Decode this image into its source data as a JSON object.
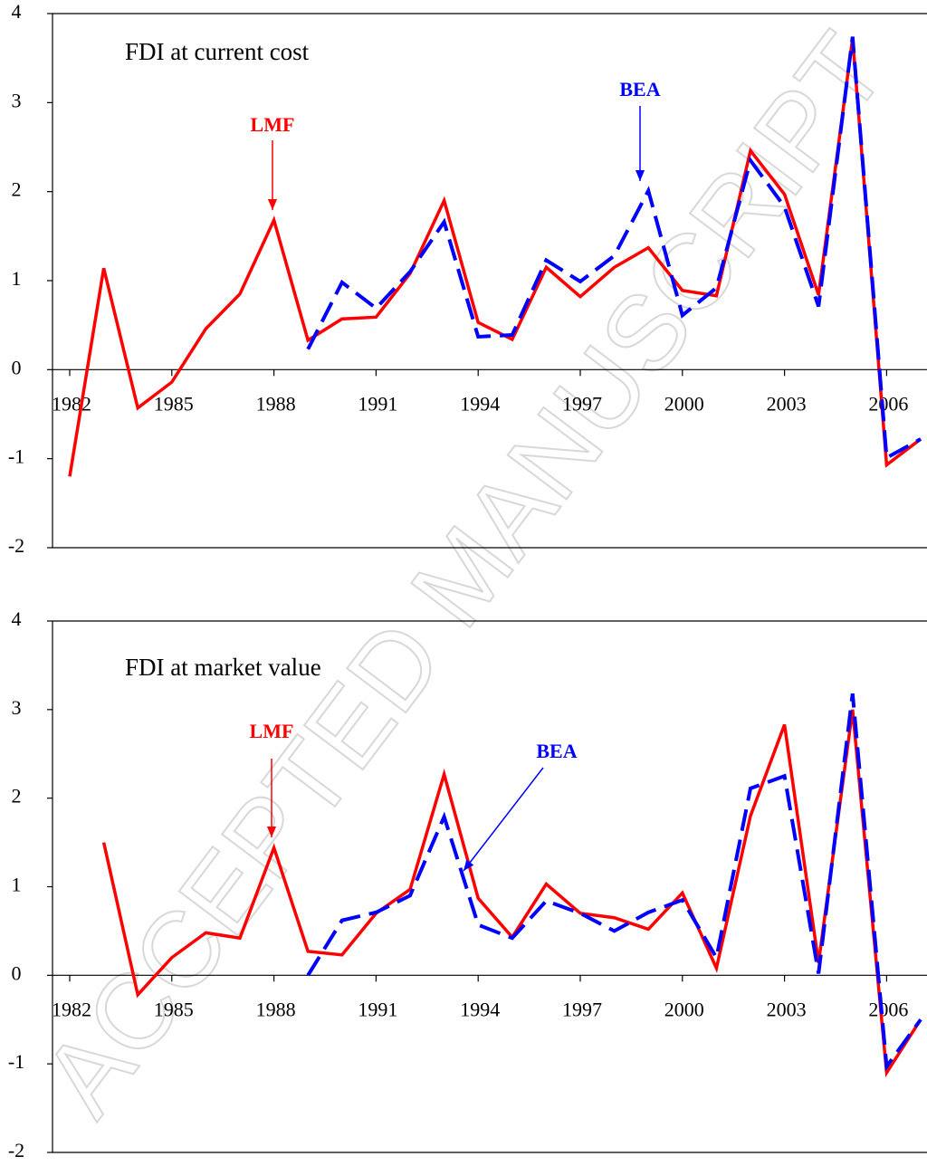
{
  "watermark": "ACCEPTED MANUSCRIPT",
  "chart_data": [
    {
      "type": "line",
      "title": "FDI at current cost",
      "x": [
        1982,
        1983,
        1984,
        1985,
        1986,
        1987,
        1988,
        1989,
        1990,
        1991,
        1992,
        1993,
        1994,
        1995,
        1996,
        1997,
        1998,
        1999,
        2000,
        2001,
        2002,
        2003,
        2004,
        2005,
        2006,
        2007
      ],
      "series": [
        {
          "name": "LMF",
          "color": "#ff0000",
          "dashed": false,
          "values": [
            -1.2,
            1.14,
            -0.43,
            -0.14,
            0.46,
            0.85,
            1.68,
            0.33,
            0.57,
            0.59,
            1.08,
            1.9,
            0.53,
            0.34,
            1.15,
            0.82,
            1.15,
            1.37,
            0.89,
            0.83,
            2.46,
            1.97,
            0.84,
            3.72,
            -1.07,
            -0.78
          ]
        },
        {
          "name": "BEA",
          "color": "#0000ff",
          "dashed": true,
          "values": [
            null,
            null,
            null,
            null,
            null,
            null,
            null,
            0.23,
            0.98,
            0.69,
            1.1,
            1.66,
            0.37,
            0.39,
            1.23,
            0.99,
            1.28,
            2.01,
            0.61,
            0.92,
            2.35,
            1.83,
            0.71,
            3.74,
            -0.99,
            -0.78
          ]
        }
      ],
      "xlim": [
        1982,
        2007
      ],
      "xticks": [
        1982,
        1985,
        1988,
        1991,
        1994,
        1997,
        2000,
        2003,
        2006
      ],
      "ylim": [
        -2,
        4
      ],
      "yticks": [
        -2,
        -1,
        0,
        1,
        2,
        3,
        4
      ]
    },
    {
      "type": "line",
      "title": "FDI at market value",
      "x": [
        1982,
        1983,
        1984,
        1985,
        1986,
        1987,
        1988,
        1989,
        1990,
        1991,
        1992,
        1993,
        1994,
        1995,
        1996,
        1997,
        1998,
        1999,
        2000,
        2001,
        2002,
        2003,
        2004,
        2005,
        2006,
        2007
      ],
      "series": [
        {
          "name": "LMF",
          "color": "#ff0000",
          "dashed": false,
          "values": [
            null,
            1.5,
            -0.22,
            0.2,
            0.48,
            0.42,
            1.44,
            0.27,
            0.23,
            0.7,
            0.97,
            2.27,
            0.87,
            0.43,
            1.03,
            0.7,
            0.65,
            0.52,
            0.93,
            0.08,
            1.8,
            2.83,
            0.14,
            3.0,
            -1.1,
            -0.5
          ]
        },
        {
          "name": "BEA",
          "color": "#0000ff",
          "dashed": true,
          "values": [
            null,
            null,
            null,
            null,
            null,
            null,
            null,
            0.0,
            0.62,
            0.71,
            0.9,
            1.79,
            0.57,
            0.42,
            0.84,
            0.7,
            0.5,
            0.71,
            0.85,
            0.2,
            2.11,
            2.25,
            0.02,
            3.18,
            -1.03,
            -0.5
          ]
        }
      ],
      "xlim": [
        1982,
        2007
      ],
      "xticks": [
        1982,
        1985,
        1988,
        1991,
        1994,
        1997,
        2000,
        2003,
        2006
      ],
      "ylim": [
        -2,
        4
      ],
      "yticks": [
        -2,
        -1,
        0,
        1,
        2,
        3,
        4
      ]
    }
  ]
}
